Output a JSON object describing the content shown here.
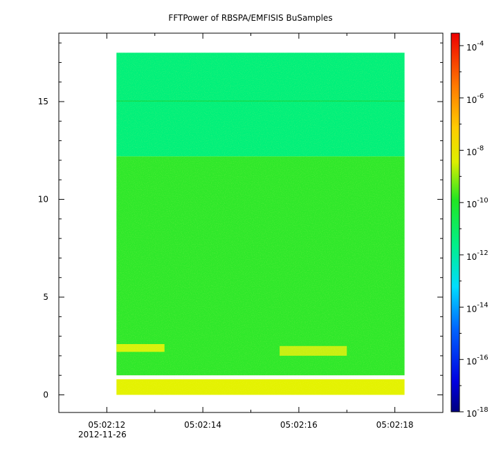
{
  "chart_data": {
    "type": "heatmap",
    "title": "FFTPower of RBSPA/EMFISIS  BuSamples",
    "xlabel": "",
    "ylabel": "",
    "x_axis": {
      "ticks": [
        {
          "value": "05:02:12",
          "label": "05:02:12"
        },
        {
          "value": "05:02:14",
          "label": "05:02:14"
        },
        {
          "value": "05:02:16",
          "label": "05:02:16"
        },
        {
          "value": "05:02:18",
          "label": "05:02:18"
        }
      ],
      "minor_ticks": [
        "05:02:11",
        "05:02:13",
        "05:02:15",
        "05:02:17",
        "05:02:19"
      ],
      "date_label": "2012-11-26",
      "range": [
        "05:02:11.0",
        "05:02:19.0"
      ]
    },
    "y_axis": {
      "ticks": [
        0,
        5,
        10,
        15
      ],
      "range": [
        -0.9,
        18.5
      ]
    },
    "colorbar": {
      "scale": "log",
      "range": [
        1e-18,
        0.0003
      ],
      "tick_exponents": [
        -18,
        -16,
        -14,
        -12,
        -10,
        -8,
        -6,
        -4
      ],
      "tick_labels": [
        {
          "base": "10",
          "exp": "-18"
        },
        {
          "base": "10",
          "exp": "-16"
        },
        {
          "base": "10",
          "exp": "-14"
        },
        {
          "base": "10",
          "exp": "-12"
        },
        {
          "base": "10",
          "exp": "-10"
        },
        {
          "base": "10",
          "exp": "-8"
        },
        {
          "base": "10",
          "exp": "-6"
        },
        {
          "base": "10",
          "exp": "-4"
        }
      ],
      "colormap": "rainbow (dark blue → blue → cyan → green → yellow → orange → red)"
    },
    "data_extent": {
      "x": [
        "05:02:12.2",
        "05:02:18.2"
      ],
      "y": [
        0,
        17.5
      ]
    },
    "regions": [
      {
        "y_range": [
          12.2,
          17.5
        ],
        "level_exp": -12.8,
        "color": "#00f07a",
        "description": "teal-green band"
      },
      {
        "y_range": [
          15.0,
          15.05
        ],
        "level_exp": -11.5,
        "color": "#11d84a",
        "description": "thin line near 15"
      },
      {
        "y_range": [
          1.0,
          12.2
        ],
        "level_exp": -10.8,
        "color": "#2ee82a",
        "description": "green band"
      },
      {
        "y_range": [
          2.2,
          2.6
        ],
        "x_range": [
          "05:02:12.2",
          "05:02:13.2"
        ],
        "level_exp": -9.0,
        "color": "#d9f20a"
      },
      {
        "y_range": [
          2.0,
          2.5
        ],
        "x_range": [
          "05:02:15.6",
          "05:02:17.0"
        ],
        "level_exp": -9.2,
        "color": "#c8ef10"
      },
      {
        "y_range": [
          0.0,
          0.8
        ],
        "level_exp": -8.8,
        "color": "#e4f200",
        "description": "yellow low-frequency band"
      }
    ]
  }
}
